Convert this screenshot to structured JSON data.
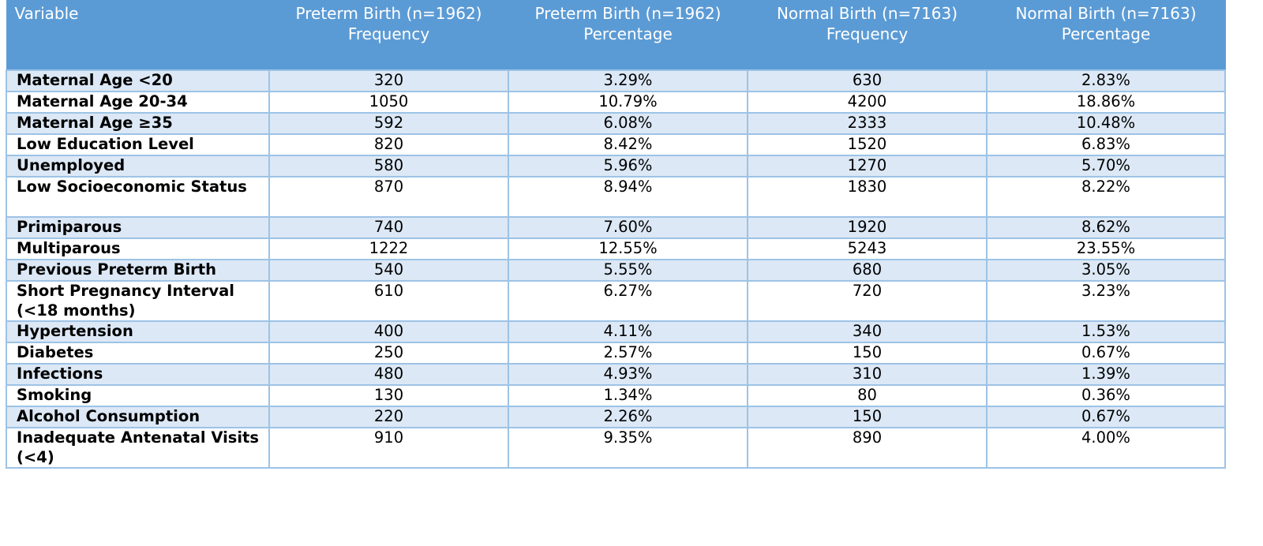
{
  "table": {
    "headers": [
      {
        "line1": "Variable",
        "line2": ""
      },
      {
        "line1": "Preterm Birth (n=1962)",
        "line2": "Frequency"
      },
      {
        "line1": "Preterm Birth (n=1962)",
        "line2": "Percentage"
      },
      {
        "line1": "Normal Birth (n=7163)",
        "line2": "Frequency"
      },
      {
        "line1": "Normal Birth (n=7163)",
        "line2": "Percentage"
      }
    ],
    "rows": [
      [
        "Maternal Age <20",
        "320",
        "3.29%",
        "630",
        "2.83%"
      ],
      [
        "Maternal Age 20-34",
        "1050",
        "10.79%",
        "4200",
        "18.86%"
      ],
      [
        "Maternal Age ≥35",
        "592",
        "6.08%",
        "2333",
        "10.48%"
      ],
      [
        "Low Education Level",
        "820",
        "8.42%",
        "1520",
        "6.83%"
      ],
      [
        "Unemployed",
        "580",
        "5.96%",
        "1270",
        "5.70%"
      ],
      [
        "Low Socioeconomic Status",
        "870",
        "8.94%",
        "1830",
        "8.22%"
      ],
      [
        "Primiparous",
        "740",
        "7.60%",
        "1920",
        "8.62%"
      ],
      [
        "Multiparous",
        "1222",
        "12.55%",
        "5243",
        "23.55%"
      ],
      [
        "Previous Preterm Birth",
        "540",
        "5.55%",
        "680",
        "3.05%"
      ],
      [
        "Short Pregnancy Interval (<18 months)",
        "610",
        "6.27%",
        "720",
        "3.23%"
      ],
      [
        "Hypertension",
        "400",
        "4.11%",
        "340",
        "1.53%"
      ],
      [
        "Diabetes",
        "250",
        "2.57%",
        "150",
        "0.67%"
      ],
      [
        "Infections",
        "480",
        "4.93%",
        "310",
        "1.39%"
      ],
      [
        "Smoking",
        "130",
        "1.34%",
        "80",
        "0.36%"
      ],
      [
        "Alcohol Consumption",
        "220",
        "2.26%",
        "150",
        "0.67%"
      ],
      [
        "Inadequate Antenatal Visits (<4)",
        "910",
        "9.35%",
        "890",
        "4.00%"
      ]
    ]
  }
}
